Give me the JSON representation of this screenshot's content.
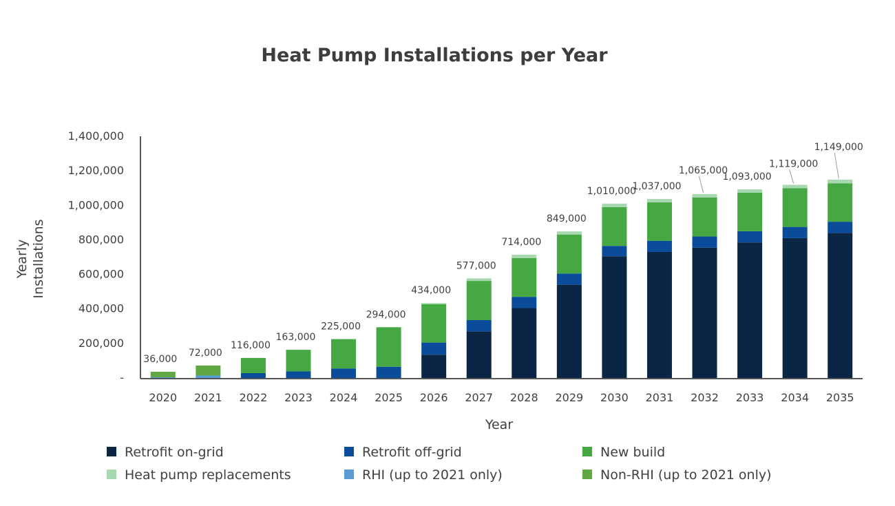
{
  "chart_data": {
    "type": "bar",
    "stacked": true,
    "title": "Heat Pump Installations per Year",
    "xlabel": "Year",
    "ylabel": "Yearly Installations",
    "ylabel_lines": [
      "Yearly",
      "Installations"
    ],
    "ylim": [
      0,
      1400000
    ],
    "yticks": [
      0,
      200000,
      400000,
      600000,
      800000,
      1000000,
      1200000,
      1400000
    ],
    "ytick_labels": [
      "-",
      "200,000",
      "400,000",
      "600,000",
      "800,000",
      "1,000,000",
      "1,200,000",
      "1,400,000"
    ],
    "grid": false,
    "legend_position": "bottom",
    "categories": [
      "2020",
      "2021",
      "2022",
      "2023",
      "2024",
      "2025",
      "2026",
      "2027",
      "2028",
      "2029",
      "2030",
      "2031",
      "2032",
      "2033",
      "2034",
      "2035"
    ],
    "series": [
      {
        "name": "Retrofit on-grid",
        "color": "#0b2545",
        "values": [
          0,
          0,
          0,
          0,
          0,
          0,
          135000,
          270000,
          405000,
          540000,
          705000,
          730000,
          755000,
          785000,
          810000,
          840000
        ]
      },
      {
        "name": "Retrofit off-grid",
        "color": "#0a4c9a",
        "values": [
          0,
          0,
          28000,
          38000,
          55000,
          65000,
          70000,
          65000,
          65000,
          65000,
          60000,
          65000,
          65000,
          65000,
          65000,
          65000
        ]
      },
      {
        "name": "New build",
        "color": "#46a843",
        "values": [
          0,
          0,
          88000,
          125000,
          170000,
          229000,
          222000,
          227000,
          225000,
          226000,
          225000,
          222000,
          225000,
          223000,
          224000,
          223000
        ]
      },
      {
        "name": "Heat pump replacements",
        "color": "#a8d8b0",
        "values": [
          0,
          0,
          0,
          0,
          0,
          0,
          7000,
          15000,
          19000,
          18000,
          20000,
          20000,
          20000,
          20000,
          20000,
          21000
        ]
      },
      {
        "name": "RHI (up to 2021 only)",
        "color": "#5b9bd5",
        "values": [
          4000,
          14000,
          0,
          0,
          0,
          0,
          0,
          0,
          0,
          0,
          0,
          0,
          0,
          0,
          0,
          0
        ]
      },
      {
        "name": "Non-RHI (up to 2021 only)",
        "color": "#5fa844",
        "values": [
          32000,
          58000,
          0,
          0,
          0,
          0,
          0,
          0,
          0,
          0,
          0,
          0,
          0,
          0,
          0,
          0
        ]
      }
    ],
    "totals": [
      36000,
      72000,
      116000,
      163000,
      225000,
      294000,
      434000,
      577000,
      714000,
      849000,
      1010000,
      1037000,
      1065000,
      1093000,
      1119000,
      1149000
    ],
    "total_labels": [
      "36,000",
      "72,000",
      "116,000",
      "163,000",
      "225,000",
      "294,000",
      "434,000",
      "577,000",
      "714,000",
      "849,000",
      "1,010,000",
      "1,037,000",
      "1,065,000",
      "1,093,000",
      "1,119,000",
      "1,149,000"
    ],
    "stack_order": [
      "Retrofit on-grid",
      "RHI (up to 2021 only)",
      "Retrofit off-grid",
      "New build",
      "Non-RHI (up to 2021 only)",
      "Heat pump replacements"
    ],
    "legend_order": [
      "Retrofit on-grid",
      "Retrofit off-grid",
      "New build",
      "Heat pump replacements",
      "RHI (up to 2021 only)",
      "Non-RHI (up to 2021 only)"
    ],
    "label_leader_lines": [
      "2032",
      "2034",
      "2035"
    ],
    "axis_color": "#555555"
  }
}
